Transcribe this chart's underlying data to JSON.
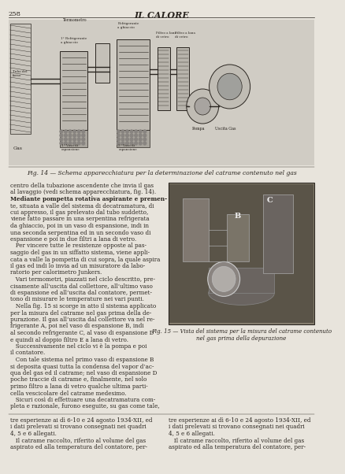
{
  "page_number": "258",
  "journal_title": "IL CALORE",
  "background_color": "#e8e4dc",
  "text_color": "#2a2520",
  "fig14_caption": "Fig. 14 — Schema apparecchiatura per la determinazione del catrame contenuto nel gas",
  "fig15_caption": "Fig. 15 — Vista del sistema per la misura del catrame contenuto\nnel gas prima della depurazione",
  "main_text": [
    "centro della tubazione ascendente che invia il gas",
    "al lavaggio (vedi schema apparecchiatura, fig. 14).",
    "Mediante pompetta rotativa aspirante e premen-",
    "te, situata a valle del sistema di decatramatura, di",
    "cui appresso, il gas prelevato dal tubo suddetto,",
    "viene fatto passare in una serpentina refrigerata",
    "da ghiaccio, poi in un vaso di espansione, indi in",
    "una seconda serpentina ed in un secondo vaso di",
    "espansione e poi in due filtri a lana di vetro.",
    "   Per vincere tutte le resistenze opposte al pas-",
    "saggio del gas in un siffatto sistema, viene appli-",
    "cata a valle la pompetta di cui sopra, la quale aspira",
    "il gas ed indi lo invia ad un misuratore da labo-",
    "ratorio per calorimetro Junkers.",
    "   Vari termometri, piazzati nel ciclo descritto, pre-",
    "cisamente all’uscita dal collettore, all’ultimo vaso",
    "di espansione ed all’uscita dal contatore, permet-",
    "tono di misurare le temperature nei vari punti.",
    "   Nella fig. 15 si scorge in atto il sistema applicato",
    "per la misura del catrame nel gas prima della de-",
    "purazione. Il gas all’uscita dal collettore va nel re-",
    "frigerante A, poi nel vaso di espansione B, indi",
    "al secondo refrigerante C, al vaso di espansione D",
    "e quindi al doppio filtro E a lana di vetro.",
    "   Successivamente nel ciclo vi è la pompa e poi",
    "il contatore.",
    "   Con tale sistema nel primo vaso di espansione B",
    "si deposita quasi tutta la condensa del vapor d’ac-",
    "qua del gas ed il catrame; nel vaso di espansione D",
    "poche traccie di catrame e, finalmente, nel solo",
    "primo filtro a lana di vetro qualche ultima parti-",
    "cella vescicolare del catrame medesimo.",
    "   Sicuri così di effettuare una decatramatura com-",
    "pleta e razionale, furono eseguite, su gas come tale,"
  ],
  "bottom_text_left": [
    "tre esperienze ai dì 6-10 e 24 agosto 1934-XII, ed",
    "i dati prelevati si trovano consegnati nei quadri",
    "4, 5 e 6 allegati.",
    "   Il catrame raccolto, riferito al volume del gas",
    "aspirato ed alla temperatura del contatore, per-"
  ]
}
